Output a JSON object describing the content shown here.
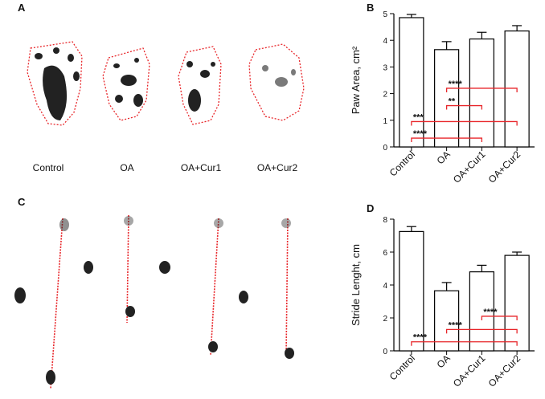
{
  "panels": {
    "A": {
      "label": "A",
      "captions": [
        "Control",
        "OA",
        "OA+Cur1",
        "OA+Cur2"
      ]
    },
    "C": {
      "label": "C"
    }
  },
  "chart_data": [
    {
      "type": "bar",
      "panel": "B",
      "y_label": "Paw Area, cm²",
      "categories": [
        "Control",
        "OA",
        "OA+Cur1",
        "OA+Cur2"
      ],
      "values": [
        4.85,
        3.65,
        4.05,
        4.35
      ],
      "errors": [
        0.12,
        0.3,
        0.25,
        0.2
      ],
      "color": "#ffffff",
      "edge_color": "#000000",
      "ylim": [
        0,
        5
      ],
      "yticks": [
        0,
        1,
        2,
        3,
        4,
        5
      ],
      "significance": [
        {
          "label": "****",
          "start": "OA",
          "end": "OA+Cur2",
          "y": 2.2
        },
        {
          "label": "**",
          "start": "OA",
          "end": "OA+Cur1",
          "y": 1.55
        },
        {
          "label": "***",
          "start": "Control",
          "end": "OA+Cur2",
          "y": 0.95
        },
        {
          "label": "****",
          "start": "Control",
          "end": "OA+Cur1",
          "y": 0.33
        }
      ],
      "significance_color": "#e8262a"
    },
    {
      "type": "bar",
      "panel": "D",
      "y_label": "Stride Lenght, cm",
      "categories": [
        "Control",
        "OA",
        "OA+Cur1",
        "OA+Cur2"
      ],
      "values": [
        7.25,
        3.65,
        4.8,
        5.8
      ],
      "errors": [
        0.3,
        0.5,
        0.4,
        0.2
      ],
      "color": "#ffffff",
      "edge_color": "#000000",
      "ylim": [
        0,
        8
      ],
      "yticks": [
        0,
        2,
        4,
        6,
        8
      ],
      "significance": [
        {
          "label": "****",
          "start": "OA+Cur1",
          "end": "OA+Cur2",
          "y": 2.1
        },
        {
          "label": "****",
          "start": "OA",
          "end": "OA+Cur2",
          "y": 1.3
        },
        {
          "label": "****",
          "start": "Control",
          "end": "OA+Cur2",
          "y": 0.55
        }
      ],
      "significance_color": "#e8262a"
    }
  ]
}
